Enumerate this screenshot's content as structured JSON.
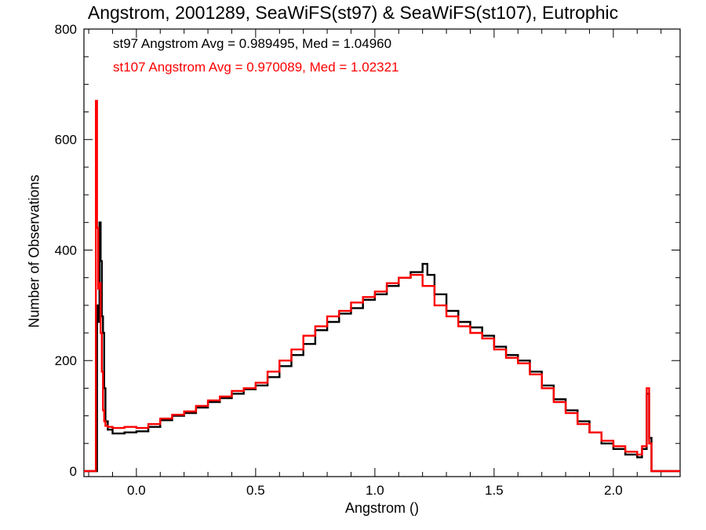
{
  "chart_data": {
    "type": "line",
    "title": "Angstrom, 2001289, SeaWiFS(st97) & SeaWiFS(st107), Eutrophic",
    "xlabel": "Angstrom ()",
    "ylabel": "Number of Observations",
    "xlim": [
      -0.22,
      2.28
    ],
    "ylim": [
      -10,
      800
    ],
    "xticks": [
      0.0,
      0.5,
      1.0,
      1.5,
      2.0
    ],
    "xtick_labels": [
      "0.0",
      "0.5",
      "1.0",
      "1.5",
      "2.0"
    ],
    "yticks": [
      0,
      200,
      400,
      600,
      800
    ],
    "ytick_labels": [
      "0",
      "200",
      "400",
      "600",
      "800"
    ],
    "grid": false,
    "annotations": [
      {
        "text": "st97 Angstrom Avg = 0.989495, Med = 1.04960",
        "color": "#000000"
      },
      {
        "text": "st107 Angstrom Avg = 0.970089, Med = 1.02321",
        "color": "#ff0000"
      }
    ],
    "series": [
      {
        "color": "#000000",
        "x": [
          -0.22,
          -0.17,
          -0.165,
          -0.16,
          -0.155,
          -0.15,
          -0.145,
          -0.14,
          -0.135,
          -0.13,
          -0.12,
          -0.1,
          -0.05,
          0.0,
          0.05,
          0.1,
          0.15,
          0.2,
          0.25,
          0.3,
          0.35,
          0.4,
          0.45,
          0.5,
          0.55,
          0.6,
          0.65,
          0.7,
          0.75,
          0.8,
          0.85,
          0.9,
          0.95,
          1.0,
          1.05,
          1.1,
          1.15,
          1.2,
          1.22,
          1.25,
          1.3,
          1.35,
          1.4,
          1.45,
          1.5,
          1.55,
          1.6,
          1.65,
          1.7,
          1.75,
          1.8,
          1.85,
          1.9,
          1.95,
          2.0,
          2.05,
          2.1,
          2.12,
          2.14,
          2.15,
          2.16,
          2.2,
          2.28
        ],
        "y": [
          0,
          0,
          300,
          270,
          450,
          380,
          280,
          250,
          150,
          90,
          75,
          68,
          70,
          72,
          80,
          92,
          100,
          105,
          115,
          125,
          132,
          140,
          148,
          155,
          170,
          190,
          210,
          230,
          255,
          270,
          285,
          295,
          310,
          320,
          335,
          350,
          360,
          375,
          355,
          320,
          290,
          270,
          260,
          245,
          225,
          210,
          200,
          180,
          155,
          130,
          110,
          90,
          70,
          50,
          40,
          30,
          25,
          40,
          140,
          60,
          0,
          0,
          0
        ]
      },
      {
        "color": "#ff0000",
        "x": [
          -0.22,
          -0.175,
          -0.17,
          -0.165,
          -0.16,
          -0.155,
          -0.15,
          -0.145,
          -0.14,
          -0.135,
          -0.13,
          -0.12,
          -0.1,
          -0.05,
          0.0,
          0.05,
          0.1,
          0.15,
          0.2,
          0.25,
          0.3,
          0.35,
          0.4,
          0.45,
          0.5,
          0.55,
          0.6,
          0.65,
          0.7,
          0.75,
          0.8,
          0.85,
          0.9,
          0.95,
          1.0,
          1.05,
          1.1,
          1.15,
          1.2,
          1.25,
          1.3,
          1.35,
          1.4,
          1.45,
          1.5,
          1.55,
          1.6,
          1.65,
          1.7,
          1.75,
          1.8,
          1.85,
          1.9,
          1.95,
          2.0,
          2.05,
          2.1,
          2.12,
          2.14,
          2.15,
          2.16,
          2.2,
          2.28
        ],
        "y": [
          0,
          0,
          670,
          440,
          330,
          340,
          250,
          180,
          110,
          90,
          82,
          80,
          78,
          80,
          78,
          85,
          95,
          102,
          108,
          118,
          128,
          135,
          145,
          150,
          160,
          180,
          200,
          220,
          245,
          262,
          280,
          290,
          305,
          315,
          325,
          340,
          350,
          355,
          335,
          300,
          280,
          262,
          250,
          240,
          220,
          205,
          195,
          175,
          150,
          125,
          105,
          85,
          70,
          55,
          45,
          35,
          30,
          45,
          150,
          50,
          0,
          0,
          0
        ]
      }
    ]
  }
}
